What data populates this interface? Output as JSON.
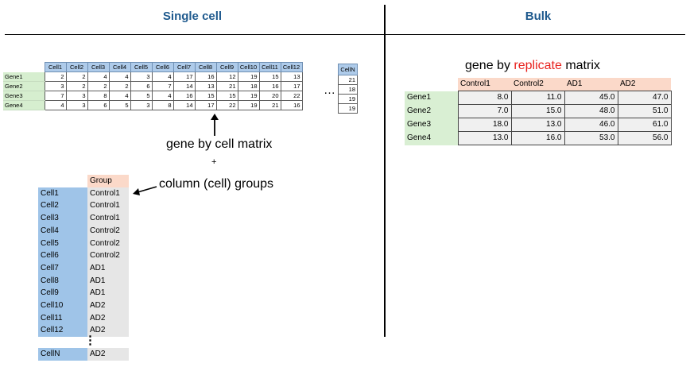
{
  "headers": {
    "single_cell": "Single cell",
    "bulk": "Bulk"
  },
  "single_cell": {
    "cells": [
      "Cell1",
      "Cell2",
      "Cell3",
      "Cell4",
      "Cell5",
      "Cell6",
      "Cell7",
      "Cell8",
      "Cell9",
      "Cell10",
      "Cell11",
      "Cell12"
    ],
    "genes": [
      "Gene1",
      "Gene2",
      "Gene3",
      "Gene4"
    ],
    "values": [
      [
        2,
        2,
        4,
        4,
        3,
        4,
        17,
        16,
        12,
        19,
        15,
        13
      ],
      [
        3,
        2,
        2,
        2,
        6,
        7,
        14,
        13,
        21,
        18,
        16,
        17
      ],
      [
        7,
        3,
        8,
        4,
        5,
        4,
        16,
        15,
        15,
        19,
        20,
        22
      ],
      [
        4,
        3,
        6,
        5,
        3,
        8,
        14,
        17,
        22,
        19,
        21,
        16
      ]
    ],
    "ellipsis": "…",
    "cell_n_header": "CellN",
    "cell_n_values": [
      21,
      18,
      19,
      19
    ],
    "matrix_caption": "gene by cell matrix",
    "plus": "+",
    "groups_caption": "column (cell) groups",
    "group_header": "Group",
    "groups": [
      {
        "cell": "Cell1",
        "group": "Control1"
      },
      {
        "cell": "Cell2",
        "group": "Control1"
      },
      {
        "cell": "Cell3",
        "group": "Control1"
      },
      {
        "cell": "Cell4",
        "group": "Control2"
      },
      {
        "cell": "Cell5",
        "group": "Control2"
      },
      {
        "cell": "Cell6",
        "group": "Control2"
      },
      {
        "cell": "Cell7",
        "group": "AD1"
      },
      {
        "cell": "Cell8",
        "group": "AD1"
      },
      {
        "cell": "Cell9",
        "group": "AD1"
      },
      {
        "cell": "Cell10",
        "group": "AD2"
      },
      {
        "cell": "Cell11",
        "group": "AD2"
      },
      {
        "cell": "Cell12",
        "group": "AD2"
      }
    ],
    "vertical_ellipsis": "⋮",
    "last_row": {
      "cell": "CellN",
      "group": "AD2"
    }
  },
  "bulk": {
    "title_prefix": "gene by ",
    "title_highlight": "replicate",
    "title_suffix": " matrix",
    "highlight_color": "#e8231f",
    "columns": [
      "Control1",
      "Control2",
      "AD1",
      "AD2"
    ],
    "genes": [
      "Gene1",
      "Gene2",
      "Gene3",
      "Gene4"
    ],
    "values": [
      [
        "8.0",
        "11.0",
        "45.0",
        "47.0"
      ],
      [
        "7.0",
        "15.0",
        "48.0",
        "51.0"
      ],
      [
        "18.0",
        "13.0",
        "46.0",
        "61.0"
      ],
      [
        "13.0",
        "16.0",
        "53.0",
        "56.0"
      ]
    ]
  }
}
